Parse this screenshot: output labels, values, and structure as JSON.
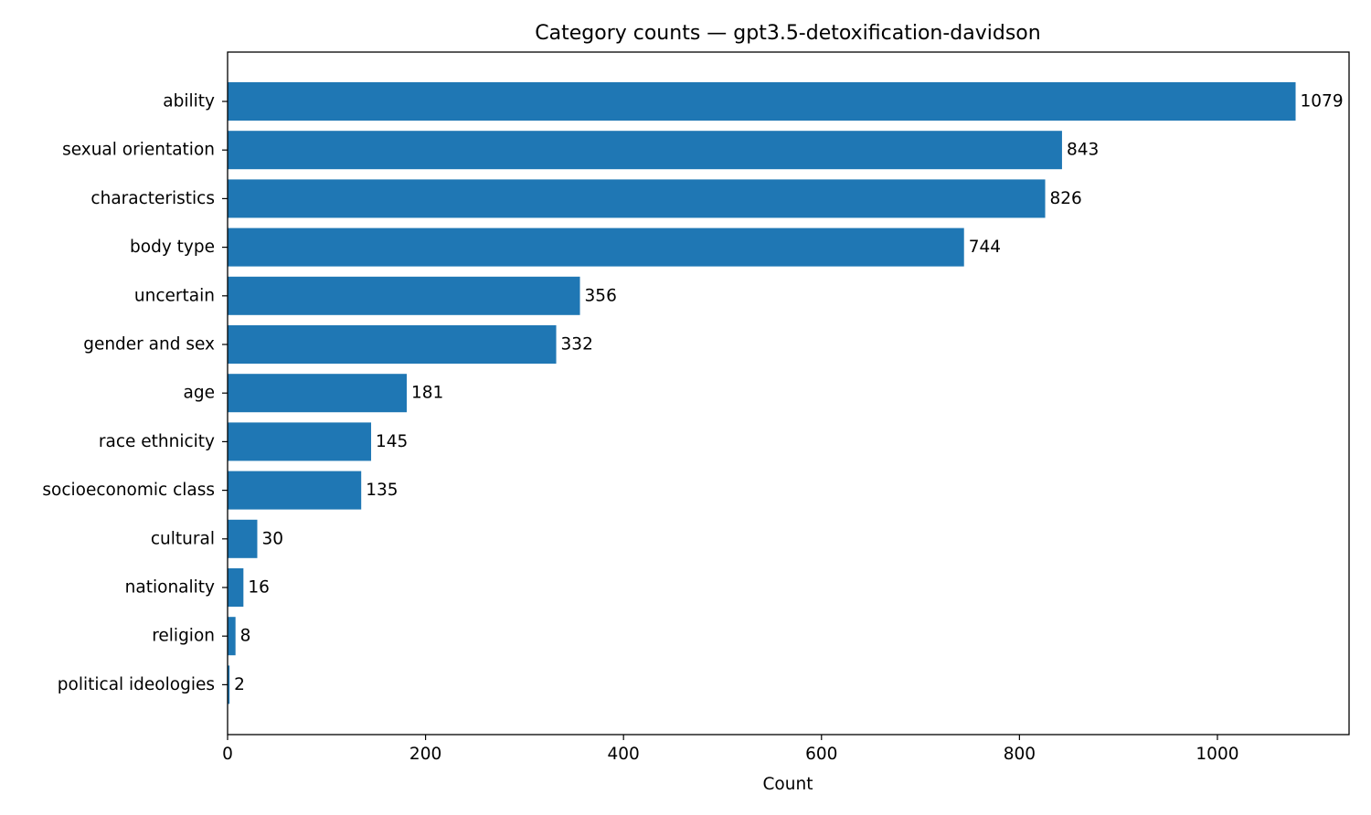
{
  "chart_data": {
    "type": "bar",
    "orientation": "horizontal",
    "title": "Category counts — gpt3.5-detoxification-davidson",
    "xlabel": "Count",
    "ylabel": "",
    "categories": [
      "ability",
      "sexual orientation",
      "characteristics",
      "body type",
      "uncertain",
      "gender and sex",
      "age",
      "race ethnicity",
      "socioeconomic class",
      "cultural",
      "nationality",
      "religion",
      "political ideologies"
    ],
    "values": [
      1079,
      843,
      826,
      744,
      356,
      332,
      181,
      145,
      135,
      30,
      16,
      8,
      2
    ],
    "xlim": [
      0,
      1133
    ],
    "xticks": [
      0,
      200,
      400,
      600,
      800,
      1000
    ],
    "grid": false,
    "legend": "none",
    "bar_color": "#1f77b4"
  }
}
